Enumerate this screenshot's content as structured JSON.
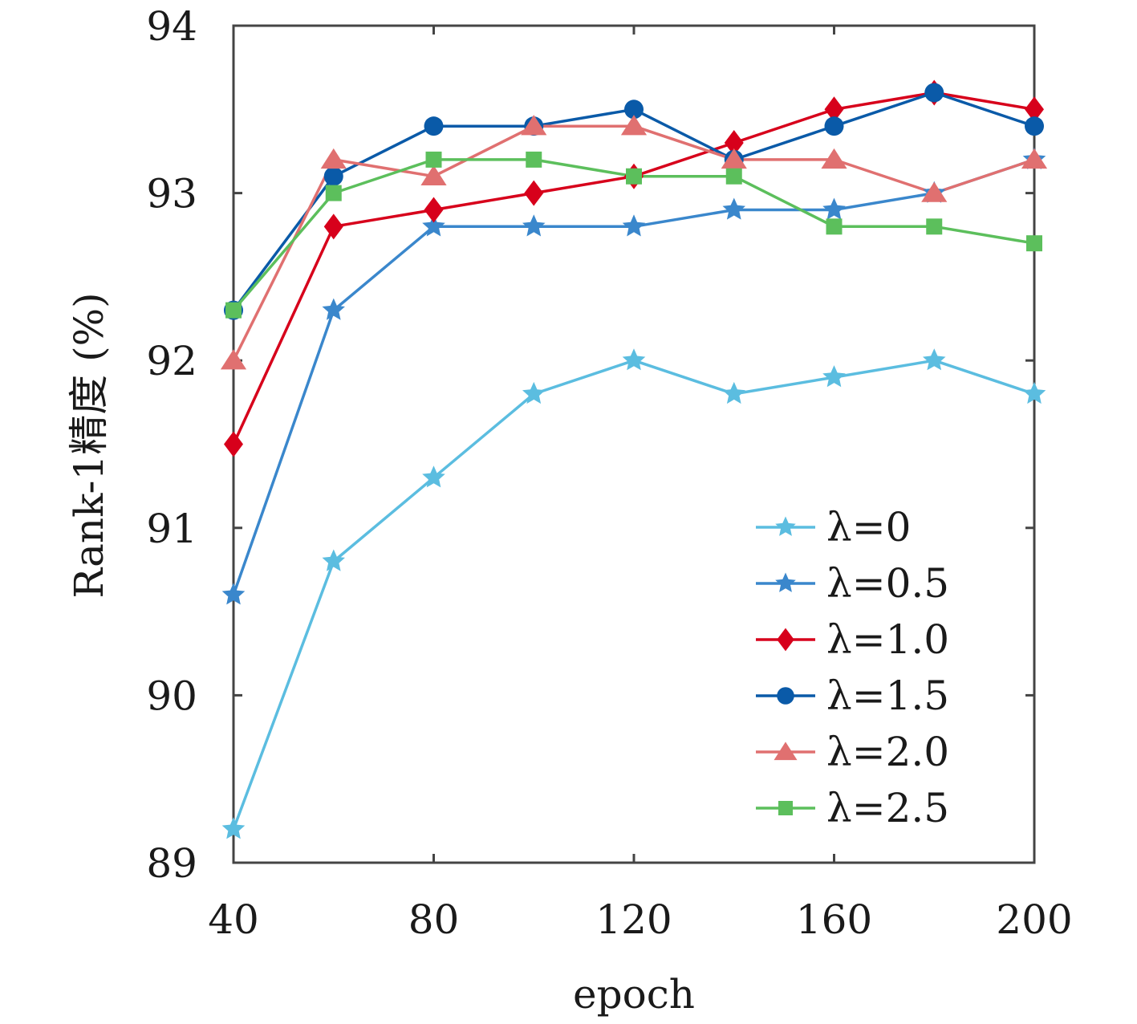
{
  "chart_data": {
    "type": "line",
    "xlabel": "epoch",
    "ylabel": "Rank-1精度 (%)",
    "x": [
      40,
      60,
      80,
      100,
      120,
      140,
      160,
      180,
      200
    ],
    "xlim": [
      40,
      200
    ],
    "ylim": [
      89,
      94
    ],
    "xticks": [
      40,
      80,
      120,
      160,
      200
    ],
    "yticks": [
      89,
      90,
      91,
      92,
      93,
      94
    ],
    "grid": false,
    "legend_position": "bottom-right",
    "series": [
      {
        "name": "λ=0",
        "color": "#5bbde0",
        "marker": "star",
        "values": [
          89.2,
          90.8,
          91.3,
          91.8,
          92.0,
          91.8,
          91.9,
          92.0,
          91.8
        ]
      },
      {
        "name": "λ=0.5",
        "color": "#3a87cc",
        "marker": "star",
        "values": [
          90.6,
          92.3,
          92.8,
          92.8,
          92.8,
          92.9,
          92.9,
          93.0,
          93.2
        ]
      },
      {
        "name": "λ=1.0",
        "color": "#d7001b",
        "marker": "diamond",
        "values": [
          91.5,
          92.8,
          92.9,
          93.0,
          93.1,
          93.3,
          93.5,
          93.6,
          93.5
        ]
      },
      {
        "name": "λ=1.5",
        "color": "#0a5aa8",
        "marker": "circle",
        "values": [
          92.3,
          93.1,
          93.4,
          93.4,
          93.5,
          93.2,
          93.4,
          93.6,
          93.4
        ]
      },
      {
        "name": "λ=2.0",
        "color": "#e07070",
        "marker": "triangle",
        "values": [
          92.0,
          93.2,
          93.1,
          93.4,
          93.4,
          93.2,
          93.2,
          93.0,
          93.2
        ]
      },
      {
        "name": "λ=2.5",
        "color": "#5cbf5c",
        "marker": "square",
        "values": [
          92.3,
          93.0,
          93.2,
          93.2,
          93.1,
          93.1,
          92.8,
          92.8,
          92.7
        ]
      }
    ]
  }
}
